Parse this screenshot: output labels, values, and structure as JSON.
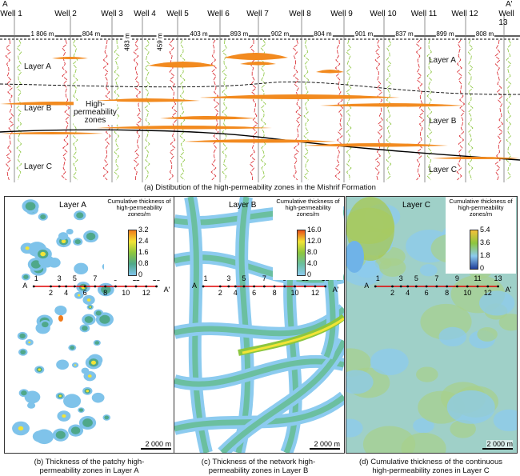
{
  "section": {
    "end_left": "A",
    "end_right": "A'",
    "wells": [
      "Well 1",
      "Well 2",
      "Well 3",
      "Well 4",
      "Well 5",
      "Well 6",
      "Well 7",
      "Well 8",
      "Well 9",
      "Well 10",
      "Well 11",
      "Well 12",
      "Well 13"
    ],
    "distances": [
      "1 806 m",
      "804 m",
      "483 m",
      "459 m",
      "403 m",
      "893 m",
      "902 m",
      "804 m",
      "901 m",
      "837 m",
      "899 m",
      "808 m"
    ],
    "layers_left": [
      "Layer A",
      "Layer B",
      "Layer C"
    ],
    "layers_right": [
      "Layer A",
      "Layer B",
      "Layer C"
    ],
    "annotation": "High-\npermeability\nzones",
    "caption": "(a) Distibution of the high-permeability zones in the Mishrif Formation"
  },
  "maps": [
    {
      "layer": "Layer A",
      "legend_title": "Cumulative thickness of high-permeability zones/m",
      "ticks": [
        "3.2",
        "2.4",
        "1.6",
        "0.8",
        "0"
      ],
      "colors": [
        "#f07a1a",
        "#f2e436",
        "#8cc63f",
        "#4fa88a",
        "#7fc3ea"
      ],
      "scale": "2 000 m",
      "caption": "(b) Thickness of the patchy high-\npermeability zones in Layer A"
    },
    {
      "layer": "Layer B",
      "legend_title": "Cumulative thickness of high-permeability zones/m",
      "ticks": [
        "16.0",
        "12.0",
        "8.0",
        "4.0",
        "0"
      ],
      "colors": [
        "#e8501a",
        "#f2e436",
        "#8cc63f",
        "#6bbfa0",
        "#8ccbef"
      ],
      "scale": "2 000 m",
      "caption": "(c) Thickness of the network high-\npermeability zones in Layer B"
    },
    {
      "layer": "Layer C",
      "legend_title": "Cumulative thickness of high-permeability zones/m",
      "ticks": [
        "5.4",
        "3.6",
        "1.8",
        "0"
      ],
      "colors": [
        "#f5c13a",
        "#8cc63f",
        "#8ccbef",
        "#1f3f9a"
      ],
      "scale": "2 000 m",
      "caption": "(d) Cumulative thickness of the continuous\nhigh-permeability zones in Layer C"
    }
  ],
  "well_numbers": [
    "1",
    "2",
    "3",
    "4",
    "5",
    "6",
    "7",
    "8",
    "9",
    "10",
    "11",
    "12",
    "13"
  ],
  "line_ends": [
    "A",
    "A'"
  ]
}
